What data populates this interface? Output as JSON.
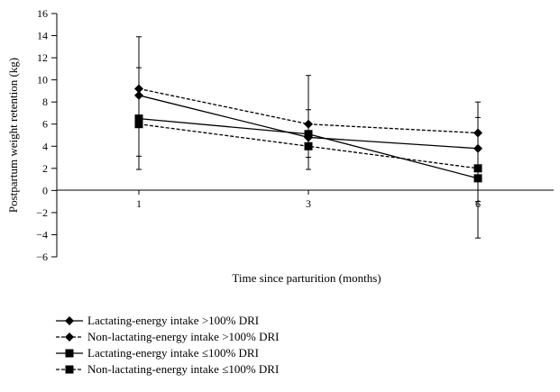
{
  "chart_data": {
    "type": "line",
    "xlabel": "Time since parturition (months)",
    "ylabel": "Postpartum weight retention (kg)",
    "x": [
      1,
      3,
      6
    ],
    "ylim": [
      -6,
      16
    ],
    "yticks": [
      -6,
      -4,
      -2,
      0,
      2,
      4,
      6,
      8,
      10,
      12,
      14,
      16
    ],
    "grid": false,
    "legend_position": "bottom-left",
    "series": [
      {
        "name": "Lactating-energy intake >100% DRI",
        "marker": "diamond",
        "line": "solid",
        "values": [
          8.6,
          4.8,
          3.8
        ]
      },
      {
        "name": "Non-lactating-energy intake >100% DRI",
        "marker": "diamond",
        "line": "dashed",
        "values": [
          9.2,
          6.0,
          5.2
        ]
      },
      {
        "name": "Lactating-energy intake ≤100% DRI",
        "marker": "square",
        "line": "solid",
        "values": [
          6.5,
          5.1,
          1.1
        ]
      },
      {
        "name": "Non-lactating-energy intake ≤100% DRI",
        "marker": "square",
        "line": "dashed",
        "values": [
          6.0,
          4.0,
          2.0
        ]
      }
    ],
    "error_bars": [
      {
        "x": 1,
        "low": 1.9,
        "high": 13.9
      },
      {
        "x": 1,
        "low": 3.1,
        "high": 11.1
      },
      {
        "x": 3,
        "low": 1.9,
        "high": 10.4
      },
      {
        "x": 3,
        "low": 3.0,
        "high": 7.3
      },
      {
        "x": 6,
        "low": -4.3,
        "high": 8.0
      },
      {
        "x": 6,
        "low": -1.0,
        "high": 6.6
      }
    ]
  }
}
